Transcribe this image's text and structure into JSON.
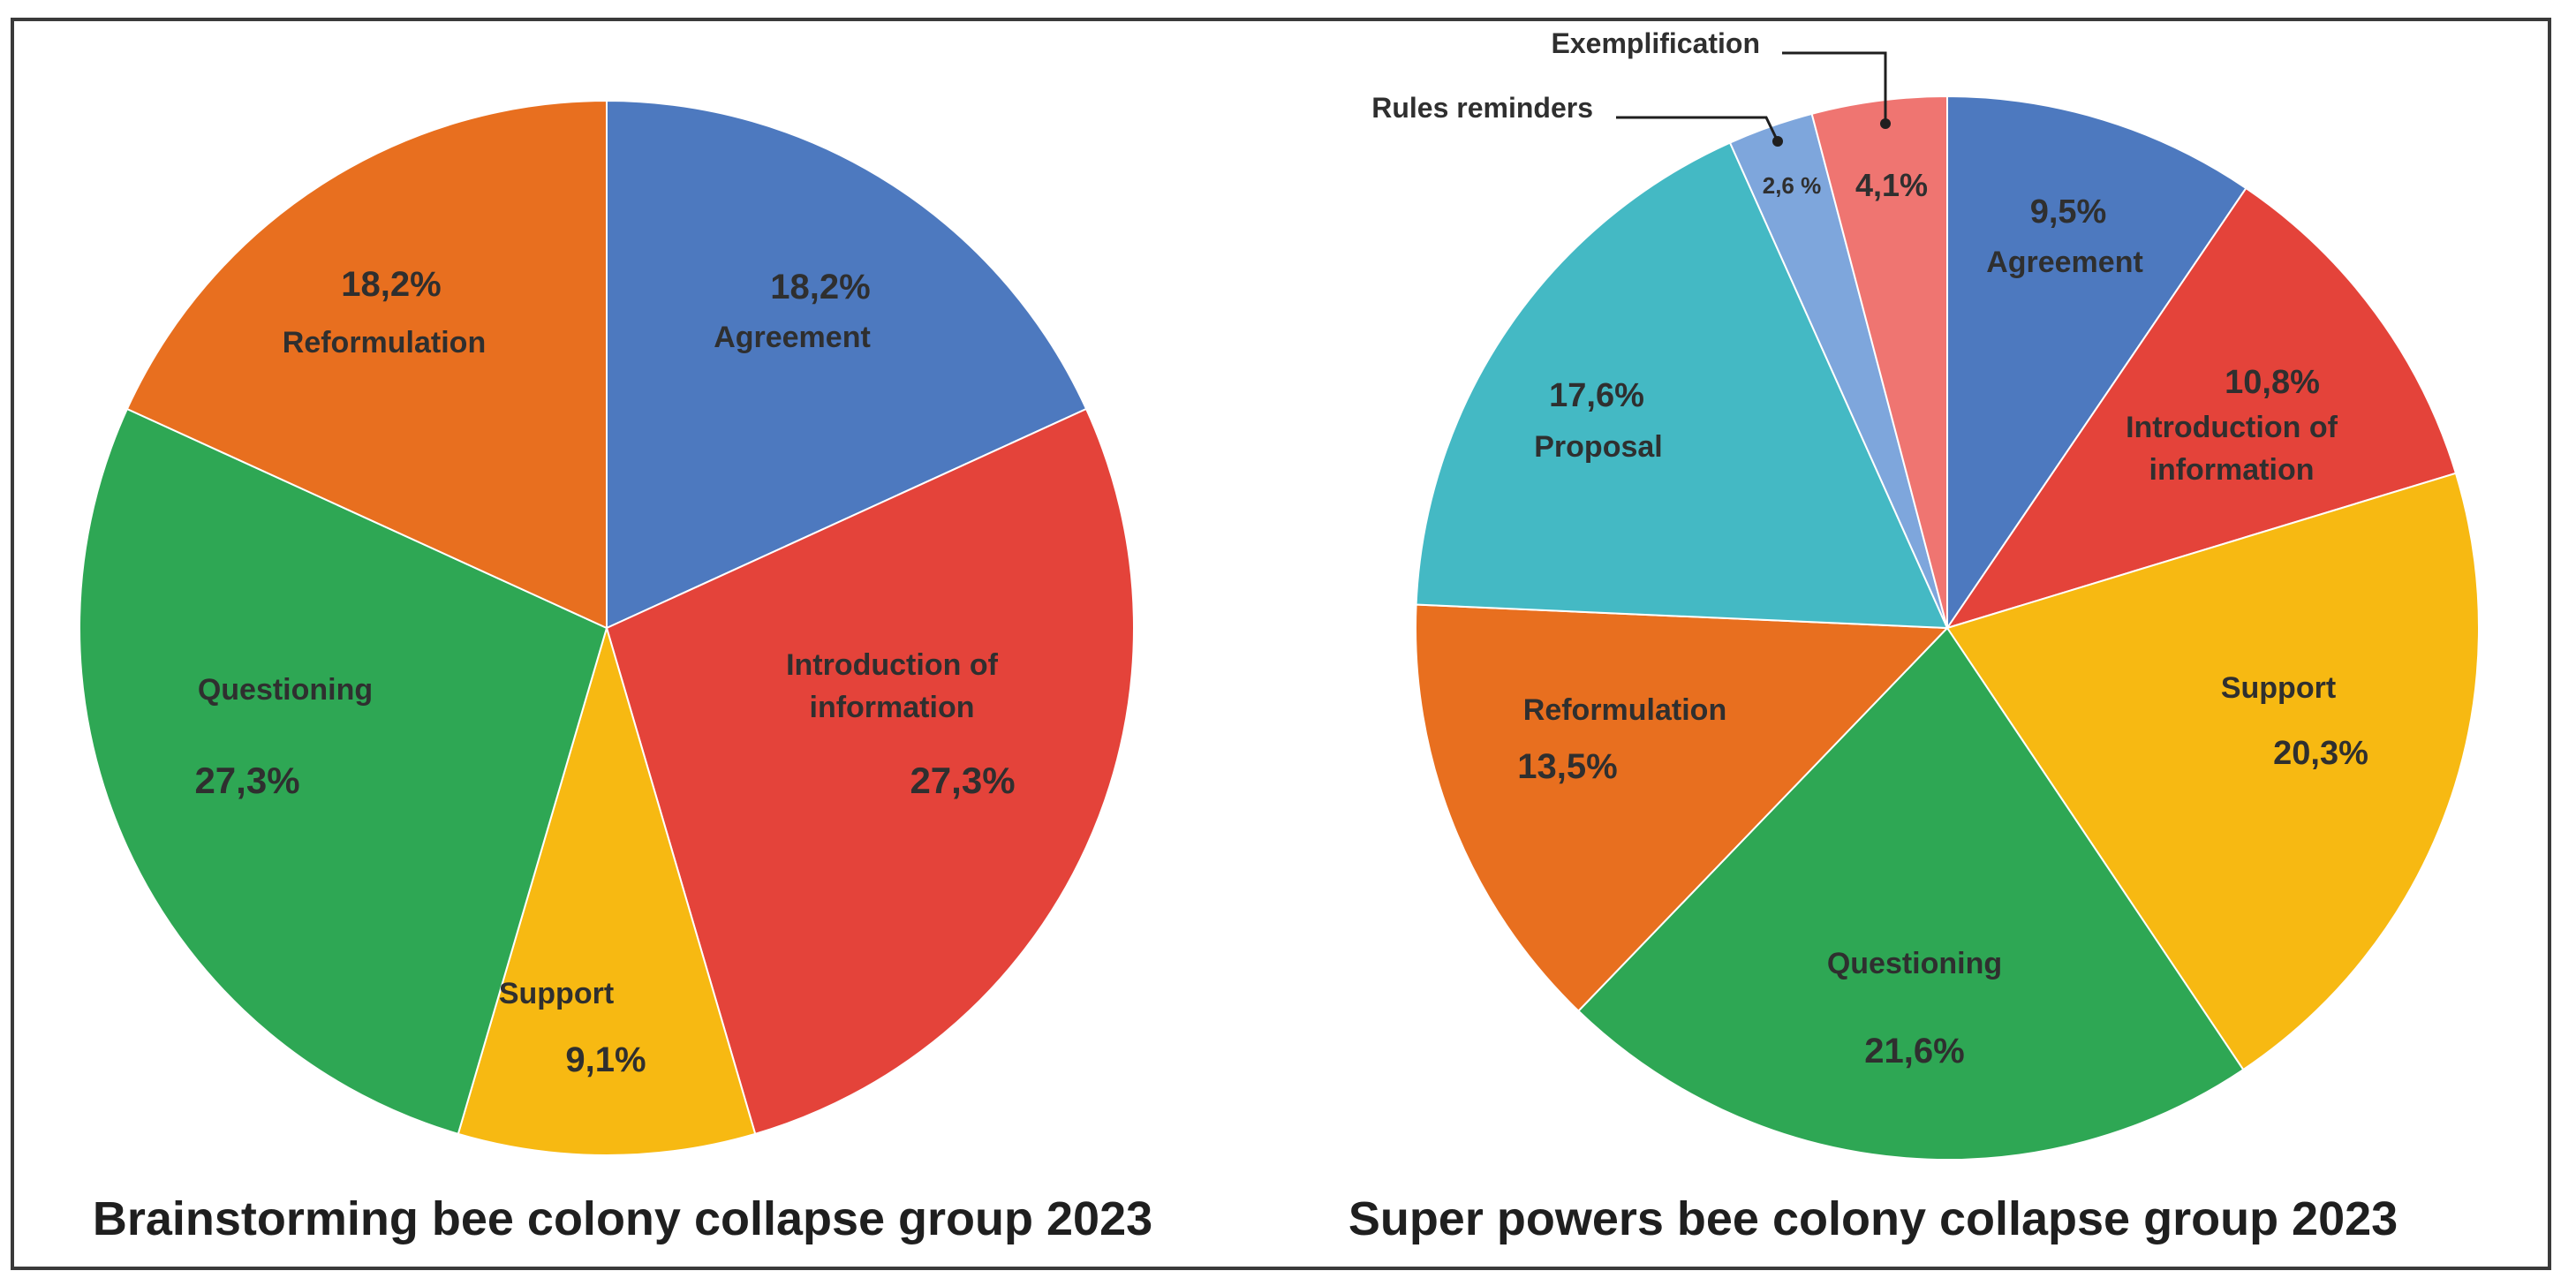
{
  "chart_data": [
    {
      "type": "pie",
      "title": "Brainstorming bee colony collapse group 2023",
      "slices": [
        {
          "name": "Agreement",
          "value": 18.2,
          "value_label": "18,2%",
          "color": "#4d79bf"
        },
        {
          "name": "Introduction of information",
          "value": 27.3,
          "value_label": "27,3%",
          "color": "#e4433a"
        },
        {
          "name": "Support",
          "value": 9.1,
          "value_label": "9,1%",
          "color": "#f7b912"
        },
        {
          "name": "Questioning",
          "value": 27.3,
          "value_label": "27,3%",
          "color": "#2ea754"
        },
        {
          "name": "Reformulation",
          "value": 18.2,
          "value_label": "18,2%",
          "color": "#e86f1f"
        }
      ]
    },
    {
      "type": "pie",
      "title": "Super powers bee colony collapse group 2023",
      "slices": [
        {
          "name": "Agreement",
          "value": 9.5,
          "value_label": "9,5%",
          "color": "#4d79bf"
        },
        {
          "name": "Introduction of information",
          "value": 10.8,
          "value_label": "10,8%",
          "color": "#e4433a"
        },
        {
          "name": "Support",
          "value": 20.3,
          "value_label": "20,3%",
          "color": "#f7b912"
        },
        {
          "name": "Questioning",
          "value": 21.6,
          "value_label": "21,6%",
          "color": "#2ea754"
        },
        {
          "name": "Reformulation",
          "value": 13.5,
          "value_label": "13,5%",
          "color": "#e86f1f"
        },
        {
          "name": "Proposal",
          "value": 17.6,
          "value_label": "17,6%",
          "color": "#44b9c4"
        },
        {
          "name": "Rules reminders",
          "value": 2.6,
          "value_label": "2,6 %",
          "color": "#7ea6dc"
        },
        {
          "name": "Exemplification",
          "value": 4.1,
          "value_label": "4,1%",
          "color": "#ef7571"
        }
      ]
    }
  ]
}
